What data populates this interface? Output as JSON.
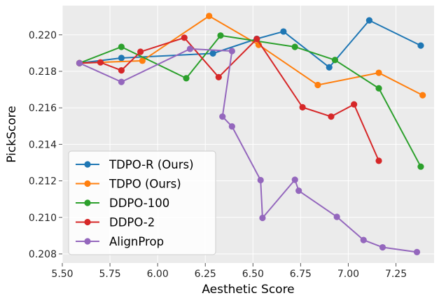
{
  "chart_data": {
    "type": "line",
    "xlabel": "Aesthetic Score",
    "ylabel": "PickScore",
    "xlim": [
      5.5,
      7.45
    ],
    "ylim": [
      0.2075,
      0.2216
    ],
    "xticks": [
      "5.50",
      "5.75",
      "6.00",
      "6.25",
      "6.50",
      "6.75",
      "7.00",
      "7.25"
    ],
    "yticks": [
      "0.208",
      "0.210",
      "0.212",
      "0.214",
      "0.216",
      "0.218",
      "0.220"
    ],
    "grid": true,
    "legend_position": "lower-left",
    "series": [
      {
        "name": "TDPO-R (Ours)",
        "color": "#1f77b4",
        "x": [
          5.59,
          5.81,
          6.29,
          6.52,
          6.66,
          6.9,
          7.11,
          7.38
        ],
        "y": [
          0.21845,
          0.21873,
          0.21898,
          0.21978,
          0.22018,
          0.21822,
          0.22079,
          0.21941
        ]
      },
      {
        "name": "TDPO (Ours)",
        "color": "#ff7f0e",
        "x": [
          5.59,
          5.92,
          6.27,
          6.53,
          6.84,
          7.16,
          7.39
        ],
        "y": [
          0.21845,
          0.21858,
          0.22103,
          0.21945,
          0.21725,
          0.21792,
          0.21669
        ]
      },
      {
        "name": "DDPO-100",
        "color": "#2ca02c",
        "x": [
          5.59,
          5.81,
          6.15,
          6.33,
          6.72,
          6.93,
          7.16,
          7.38
        ],
        "y": [
          0.21845,
          0.21934,
          0.21762,
          0.21996,
          0.21934,
          0.21862,
          0.21707,
          0.21278
        ]
      },
      {
        "name": "DDPO-2",
        "color": "#d62728",
        "x": [
          5.59,
          5.7,
          5.81,
          5.91,
          6.14,
          6.32,
          6.52,
          6.76,
          6.91,
          7.03,
          7.16
        ],
        "y": [
          0.21845,
          0.21849,
          0.21805,
          0.21907,
          0.21984,
          0.21768,
          0.21977,
          0.21603,
          0.21552,
          0.21619,
          0.2131
        ]
      },
      {
        "name": "AlignProp",
        "color": "#9467bd",
        "x": [
          5.59,
          5.81,
          6.17,
          6.39,
          6.34,
          6.39,
          6.54,
          6.55,
          6.72,
          6.74,
          6.94,
          7.08,
          7.18,
          7.36
        ],
        "y": [
          0.21845,
          0.21742,
          0.21923,
          0.21911,
          0.21552,
          0.21498,
          0.21204,
          0.20997,
          0.21206,
          0.21146,
          0.21003,
          0.20876,
          0.20836,
          0.2081
        ]
      }
    ]
  }
}
